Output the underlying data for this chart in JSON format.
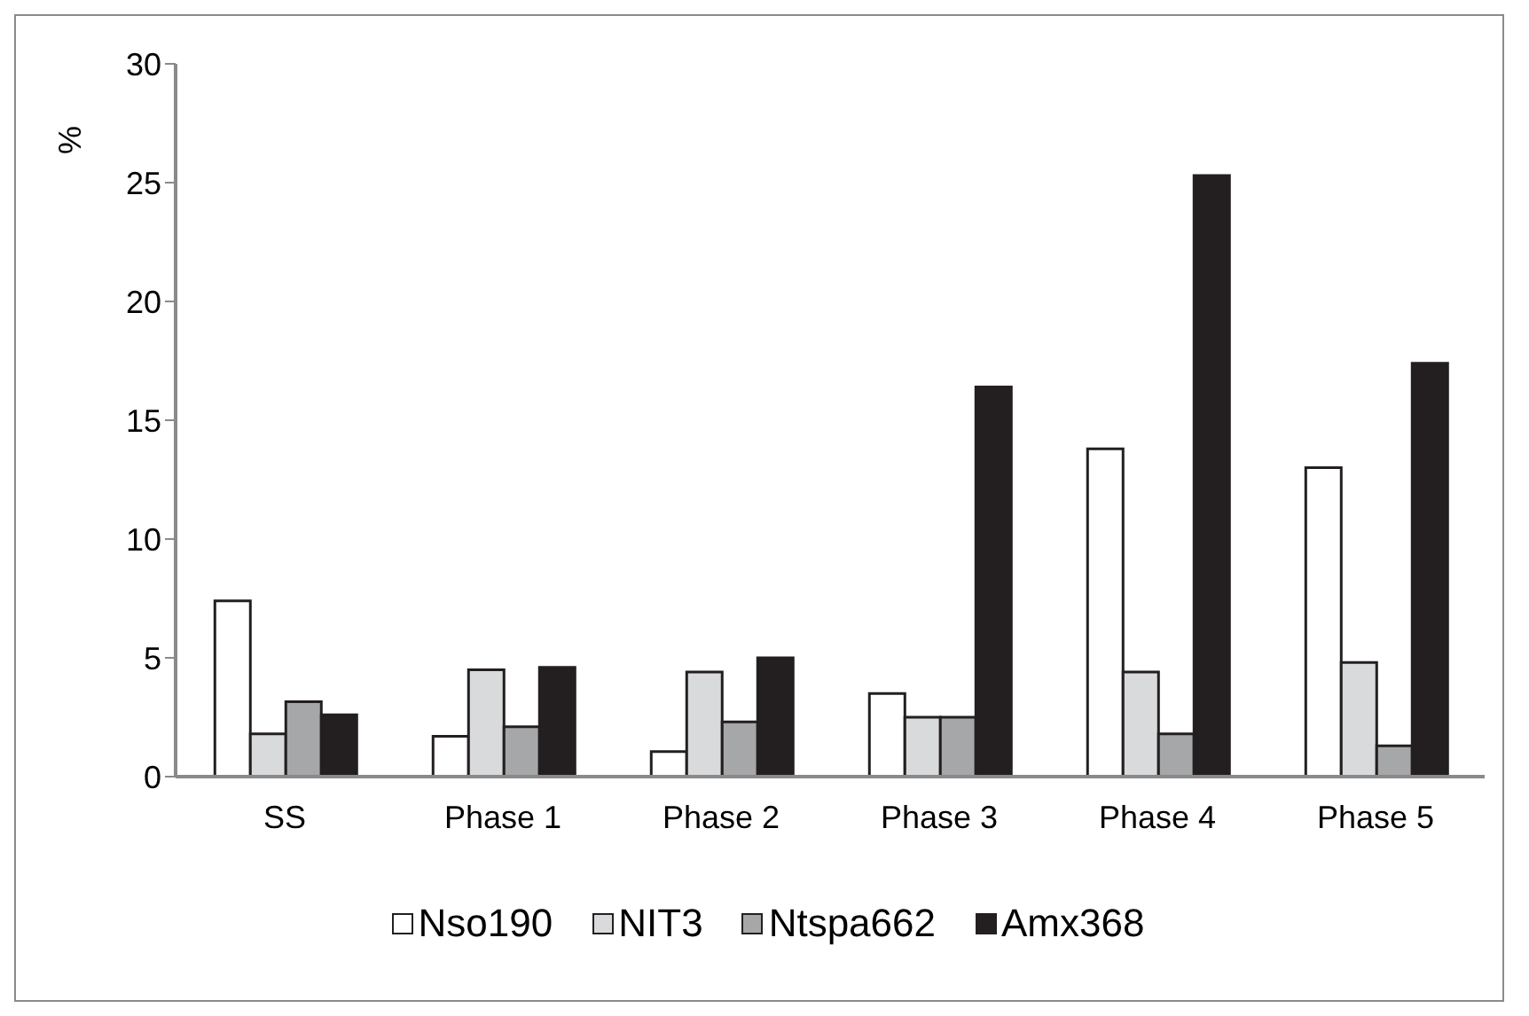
{
  "chart_data": {
    "type": "bar",
    "ylabel": "%",
    "categories": [
      "SS",
      "Phase 1",
      "Phase 2",
      "Phase 3",
      "Phase 4",
      "Phase 5"
    ],
    "series": [
      {
        "name": "Nso190",
        "color": "#ffffff",
        "values": [
          7.4,
          1.7,
          1.05,
          3.5,
          13.8,
          13.0
        ]
      },
      {
        "name": "NIT3",
        "color": "#d9dadb",
        "values": [
          1.8,
          4.5,
          4.4,
          2.5,
          4.4,
          4.8
        ]
      },
      {
        "name": "Ntspa662",
        "color": "#a6a7a9",
        "values": [
          3.15,
          2.1,
          2.3,
          2.5,
          1.8,
          1.3
        ]
      },
      {
        "name": "Amx368",
        "color": "#231f20",
        "values": [
          2.6,
          4.6,
          5.0,
          16.4,
          25.3,
          17.4
        ]
      }
    ],
    "ylim": [
      0,
      30
    ],
    "yticks": [
      0,
      5,
      10,
      15,
      20,
      25,
      30
    ],
    "grid": false,
    "legend": "bottom"
  }
}
